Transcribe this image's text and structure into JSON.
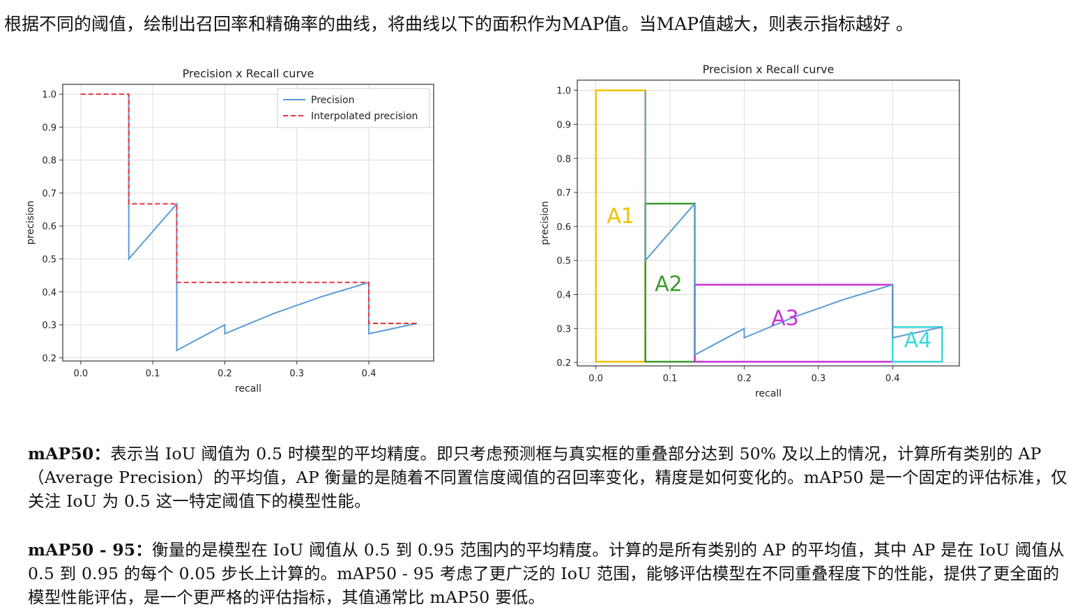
{
  "intro": "根据不同的阈值，绘制出召回率和精确率的曲线，将曲线以下的面积作为MAP值。当MAP值越大，则表示指标越好 。",
  "paragraphs": {
    "map50_term": "mAP50：",
    "map50_text": "表示当 IoU 阈值为 0.5 时模型的平均精度。即只考虑预测框与真实框的重叠部分达到 50% 及以上的情况，计算所有类别的 AP（Average Precision）的平均值，AP 衡量的是随着不同置信度阈值的召回率变化，精度是如何变化的。mAP50 是一个固定的评估标准，仅关注 IoU 为 0.5 这一特定阈值下的模型性能。",
    "map5095_term": "mAP50 - 95：",
    "map5095_text": "衡量的是模型在 IoU 阈值从 0.5 到 0.95 范围内的平均精度。计算的是所有类别的 AP 的平均值，其中 AP 是在 IoU 阈值从 0.5 到 0.95 的每个 0.05 步长上计算的。mAP50 - 95 考虑了更广泛的 IoU 范围，能够评估模型在不同重叠程度下的性能，提供了更全面的模型性能评估，是一个更严格的评估指标，其值通常比 mAP50 要低。"
  },
  "chart_data": [
    {
      "type": "line",
      "title": "Precision x Recall curve",
      "xlabel": "recall",
      "ylabel": "precision",
      "xlim": [
        -0.025,
        0.49
      ],
      "ylim": [
        0.19,
        1.03
      ],
      "xticks": [
        "0.0",
        "0.1",
        "0.2",
        "0.3",
        "0.4"
      ],
      "yticks": [
        "0.2",
        "0.3",
        "0.4",
        "0.5",
        "0.6",
        "0.7",
        "0.8",
        "0.9",
        "1.0"
      ],
      "grid": true,
      "legend": "top-right",
      "series": [
        {
          "name": "Precision",
          "color": "#5b9bd5",
          "style": "solid",
          "x": [
            0.0667,
            0.0667,
            0.0667,
            0.1333,
            0.1333,
            0.1333,
            0.2,
            0.2,
            0.2667,
            0.3333,
            0.4,
            0.4,
            0.4667
          ],
          "y": [
            1.0,
            0.667,
            0.5,
            0.667,
            0.4286,
            0.2222,
            0.3,
            0.2727,
            0.3333,
            0.3846,
            0.4286,
            0.2727,
            0.3043
          ]
        },
        {
          "name": "Interpolated precision",
          "color": "#e8323c",
          "style": "dashed",
          "x": [
            0.0,
            0.0667,
            0.0667,
            0.1333,
            0.1333,
            0.4,
            0.4,
            0.4667
          ],
          "y": [
            1.0,
            1.0,
            0.667,
            0.667,
            0.4286,
            0.4286,
            0.3043,
            0.3043
          ]
        }
      ]
    },
    {
      "type": "line",
      "title": "Precision x Recall curve",
      "xlabel": "recall",
      "ylabel": "precision",
      "xlim": [
        -0.025,
        0.49
      ],
      "ylim": [
        0.19,
        1.03
      ],
      "xticks": [
        "0.0",
        "0.1",
        "0.2",
        "0.3",
        "0.4"
      ],
      "yticks": [
        "0.2",
        "0.3",
        "0.4",
        "0.5",
        "0.6",
        "0.7",
        "0.8",
        "0.9",
        "1.0"
      ],
      "grid": true,
      "series": [
        {
          "color": "#5b9bd5",
          "style": "solid",
          "x": [
            0.0667,
            0.0667,
            0.0667,
            0.1333,
            0.1333,
            0.1333,
            0.2,
            0.2,
            0.2667,
            0.3333,
            0.4,
            0.4,
            0.4667
          ],
          "y": [
            1.0,
            0.667,
            0.5,
            0.667,
            0.4286,
            0.2222,
            0.3,
            0.2727,
            0.3333,
            0.3846,
            0.4286,
            0.2727,
            0.3043
          ]
        }
      ],
      "areas": [
        {
          "label": "A1",
          "color": "#f2c200",
          "x0": 0.0,
          "x1": 0.0667,
          "y": 1.0
        },
        {
          "label": "A2",
          "color": "#3c9a2e",
          "x0": 0.0667,
          "x1": 0.1333,
          "y": 0.667
        },
        {
          "label": "A3",
          "color": "#c832d8",
          "x0": 0.1333,
          "x1": 0.4,
          "y": 0.4286
        },
        {
          "label": "A4",
          "color": "#38dada",
          "x0": 0.4,
          "x1": 0.4667,
          "y": 0.3043
        }
      ]
    }
  ]
}
